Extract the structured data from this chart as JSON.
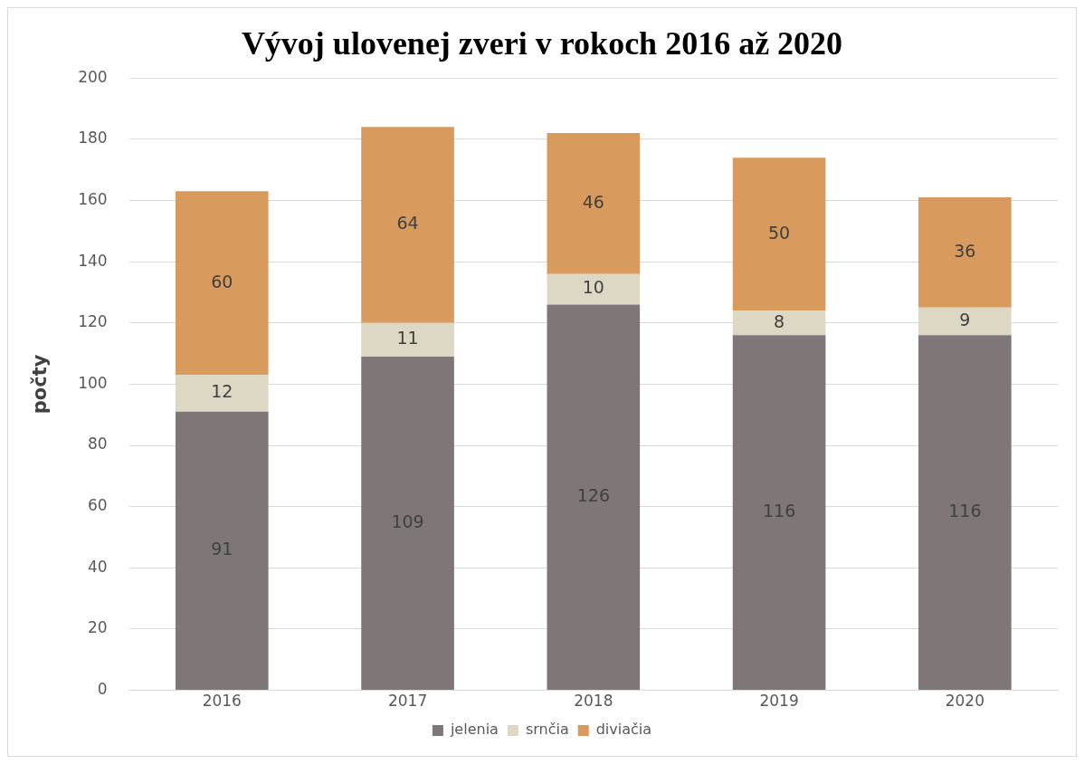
{
  "chart_data": {
    "type": "bar",
    "title": "Vývoj ulovenej zveri v rokoch 2016 až 2020",
    "ylabel": "počty",
    "categories": [
      "2016",
      "2017",
      "2018",
      "2019",
      "2020"
    ],
    "series": [
      {
        "name": "jelenia",
        "color": "#7f7777",
        "values": [
          91,
          109,
          126,
          116,
          116
        ]
      },
      {
        "name": "srnčia",
        "color": "#ddd8c4",
        "values": [
          12,
          11,
          10,
          8,
          9
        ]
      },
      {
        "name": "diviačia",
        "color": "#d99a5e",
        "values": [
          60,
          64,
          46,
          50,
          36
        ]
      }
    ],
    "stacked": true,
    "ylim": [
      0,
      200
    ],
    "yticks": [
      0,
      20,
      40,
      60,
      80,
      100,
      120,
      140,
      160,
      180,
      200
    ],
    "grid": "y",
    "legend": "bottom",
    "data_labels": true
  }
}
